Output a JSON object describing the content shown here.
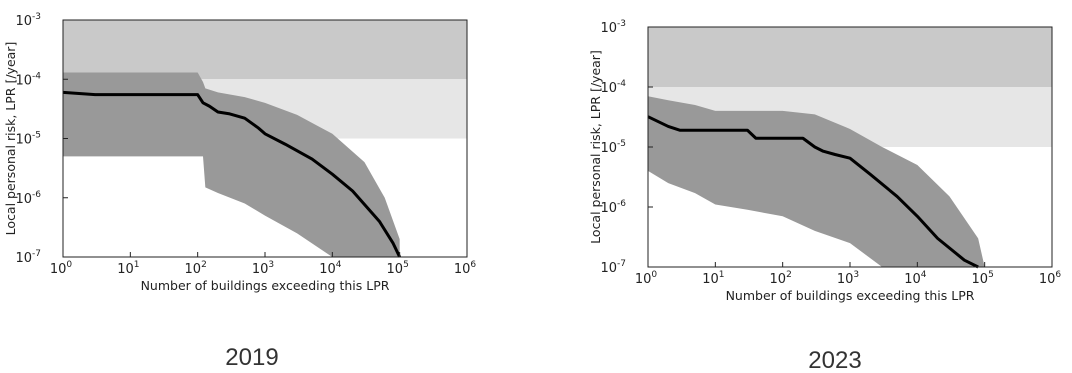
{
  "chart_data": [
    {
      "type": "line",
      "caption": "2019",
      "xlabel": "Number of buildings exceeding this LPR",
      "ylabel": "Local personal risk, LPR [/year]",
      "xscale": "log",
      "yscale": "log",
      "xlim": [
        1,
        1000000
      ],
      "ylim": [
        1e-07,
        0.001
      ],
      "x_ticks": [
        {
          "base": "10",
          "exp": "0"
        },
        {
          "base": "10",
          "exp": "1"
        },
        {
          "base": "10",
          "exp": "2"
        },
        {
          "base": "10",
          "exp": "3"
        },
        {
          "base": "10",
          "exp": "4"
        },
        {
          "base": "10",
          "exp": "5"
        },
        {
          "base": "10",
          "exp": "6"
        }
      ],
      "y_ticks": [
        {
          "base": "10",
          "exp": "-7"
        },
        {
          "base": "10",
          "exp": "-6"
        },
        {
          "base": "10",
          "exp": "-5"
        },
        {
          "base": "10",
          "exp": "-4"
        },
        {
          "base": "10",
          "exp": "-3"
        }
      ],
      "risk_zones": [
        {
          "ymin": 0.0001,
          "ymax": 0.001,
          "color": "#c9c9c9"
        },
        {
          "ymin": 1e-05,
          "ymax": 0.0001,
          "color": "#e6e6e6"
        }
      ],
      "band_color": "#999999",
      "line_color": "#000000",
      "band": {
        "x": [
          1,
          2,
          5,
          10,
          30,
          100,
          120,
          130,
          200,
          500,
          1000,
          3000,
          10000,
          30000,
          60000,
          100000
        ],
        "upper": [
          0.00013,
          0.00013,
          0.00013,
          0.00013,
          0.00013,
          0.00013,
          9e-05,
          7e-05,
          6e-05,
          5e-05,
          4e-05,
          2.5e-05,
          1.2e-05,
          4e-06,
          1e-06,
          2e-07
        ],
        "lower": [
          5e-06,
          5e-06,
          5e-06,
          5e-06,
          5e-06,
          5e-06,
          5e-06,
          1.5e-06,
          1.2e-06,
          8e-07,
          5e-07,
          2.5e-07,
          1e-07,
          1e-07,
          1e-07,
          1e-07
        ]
      },
      "median": {
        "x": [
          1,
          3,
          10,
          30,
          100,
          120,
          150,
          200,
          300,
          500,
          800,
          1000,
          2000,
          5000,
          10000,
          20000,
          50000,
          80000,
          100000
        ],
        "y": [
          6e-05,
          5.5e-05,
          5.5e-05,
          5.5e-05,
          5.5e-05,
          4e-05,
          3.5e-05,
          2.8e-05,
          2.6e-05,
          2.2e-05,
          1.5e-05,
          1.2e-05,
          8e-06,
          4.5e-06,
          2.5e-06,
          1.3e-06,
          4e-07,
          1.7e-07,
          1e-07
        ]
      }
    },
    {
      "type": "line",
      "caption": "2023",
      "xlabel": "Number of buildings exceeding this LPR",
      "ylabel": "Local personal risk, LPR [/year]",
      "xscale": "log",
      "yscale": "log",
      "xlim": [
        1,
        1000000
      ],
      "ylim": [
        1e-07,
        0.001
      ],
      "x_ticks": [
        {
          "base": "10",
          "exp": "0"
        },
        {
          "base": "10",
          "exp": "1"
        },
        {
          "base": "10",
          "exp": "2"
        },
        {
          "base": "10",
          "exp": "3"
        },
        {
          "base": "10",
          "exp": "4"
        },
        {
          "base": "10",
          "exp": "5"
        },
        {
          "base": "10",
          "exp": "6"
        }
      ],
      "y_ticks": [
        {
          "base": "10",
          "exp": "-7"
        },
        {
          "base": "10",
          "exp": "-6"
        },
        {
          "base": "10",
          "exp": "-5"
        },
        {
          "base": "10",
          "exp": "-4"
        },
        {
          "base": "10",
          "exp": "-3"
        }
      ],
      "risk_zones": [
        {
          "ymin": 0.0001,
          "ymax": 0.001,
          "color": "#c9c9c9"
        },
        {
          "ymin": 1e-05,
          "ymax": 0.0001,
          "color": "#e6e6e6"
        }
      ],
      "band_color": "#999999",
      "line_color": "#000000",
      "band": {
        "x": [
          1,
          2,
          5,
          10,
          30,
          100,
          300,
          1000,
          3000,
          10000,
          30000,
          80000,
          100000
        ],
        "upper": [
          7e-05,
          6e-05,
          5e-05,
          4e-05,
          4e-05,
          4e-05,
          3.5e-05,
          2e-05,
          1e-05,
          5e-06,
          1.5e-06,
          3e-07,
          1e-07
        ],
        "lower": [
          4e-06,
          2.5e-06,
          1.7e-06,
          1.1e-06,
          9e-07,
          7e-07,
          4e-07,
          2.5e-07,
          1e-07,
          1e-07,
          1e-07,
          1e-07,
          1e-07
        ]
      },
      "median": {
        "x": [
          1,
          2,
          3,
          10,
          30,
          40,
          100,
          200,
          300,
          400,
          600,
          1000,
          2000,
          5000,
          10000,
          20000,
          50000,
          80000
        ],
        "y": [
          3.2e-05,
          2.2e-05,
          1.9e-05,
          1.9e-05,
          1.9e-05,
          1.4e-05,
          1.4e-05,
          1.4e-05,
          1e-05,
          8.5e-06,
          7.5e-06,
          6.5e-06,
          3.5e-06,
          1.5e-06,
          7e-07,
          3e-07,
          1.3e-07,
          1e-07
        ]
      }
    }
  ]
}
